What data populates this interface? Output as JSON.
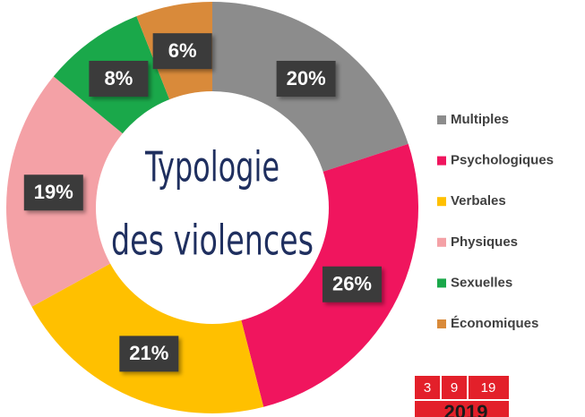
{
  "chart_data": {
    "type": "donut",
    "title_lines": [
      "Typologie",
      "des violences"
    ],
    "categories": [
      "Multiples",
      "Psychologiques",
      "Verbales",
      "Physiques",
      "Sexuelles",
      "Économiques"
    ],
    "values": [
      20,
      26,
      21,
      19,
      8,
      6
    ],
    "value_labels": [
      "20%",
      "26%",
      "21%",
      "19%",
      "8%",
      "6%"
    ],
    "colors": [
      "#8c8c8c",
      "#f0155e",
      "#ffc000",
      "#f4a1a6",
      "#1aa84a",
      "#d98a3a"
    ],
    "legend": "right"
  },
  "logo": {
    "boxes": [
      "3",
      "9",
      "19"
    ],
    "text": "2019"
  }
}
